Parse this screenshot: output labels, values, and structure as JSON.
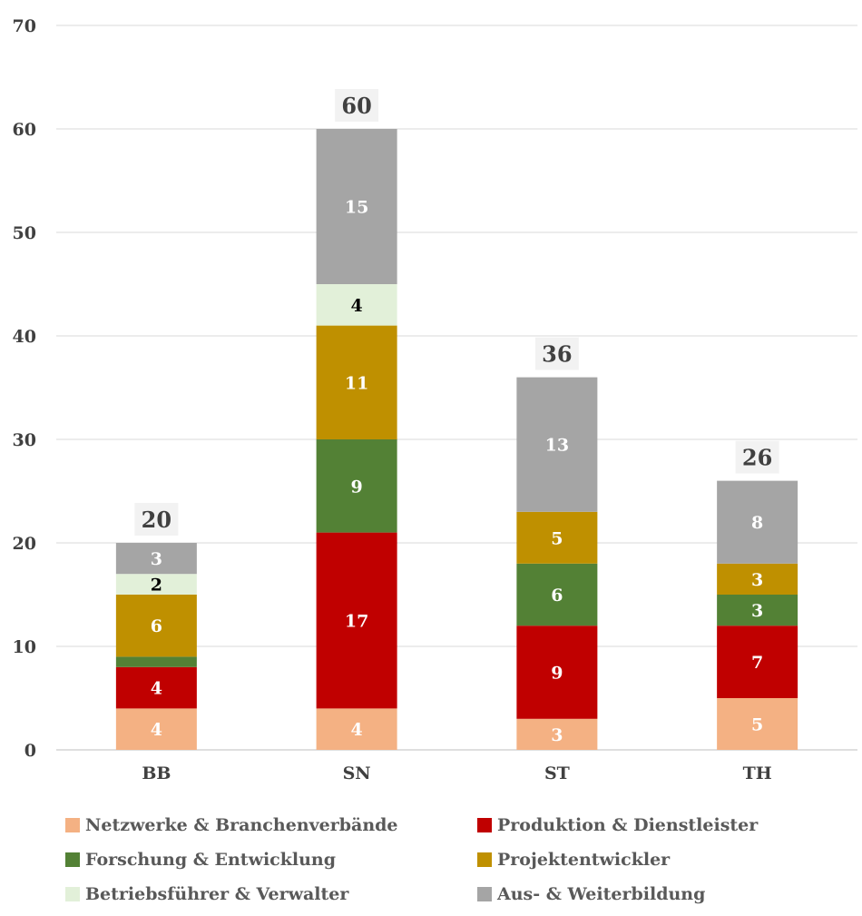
{
  "chart_data": {
    "type": "bar",
    "stacked": true,
    "categories": [
      "BB",
      "SN",
      "ST",
      "TH"
    ],
    "ylim": [
      0,
      70
    ],
    "yticks": [
      0,
      10,
      20,
      30,
      40,
      50,
      60,
      70
    ],
    "grid": true,
    "legend_position": "bottom",
    "series": [
      {
        "name": "Netzwerke & Branchenverbände",
        "color": "#f4b183",
        "label_color": "#ffffff",
        "values": [
          4,
          4,
          3,
          5
        ]
      },
      {
        "name": "Produktion & Dienstleister",
        "color": "#c00000",
        "label_color": "#ffffff",
        "values": [
          4,
          17,
          9,
          7
        ]
      },
      {
        "name": "Forschung & Entwicklung",
        "color": "#538135",
        "label_color": "#ffffff",
        "values": [
          1,
          9,
          6,
          3
        ],
        "labels_shown": [
          false,
          true,
          true,
          true
        ]
      },
      {
        "name": "Projektentwickler",
        "color": "#bf9000",
        "label_color": "#ffffff",
        "values": [
          6,
          11,
          5,
          3
        ]
      },
      {
        "name": "Betriebsführer & Verwalter",
        "color": "#e2f0d9",
        "label_color": "#000000",
        "values": [
          2,
          4,
          0,
          0
        ],
        "labels_shown": [
          true,
          true,
          false,
          false
        ]
      },
      {
        "name": "Aus- & Weiterbildung",
        "color": "#a5a5a5",
        "label_color": "#ffffff",
        "values": [
          3,
          15,
          13,
          8
        ]
      }
    ],
    "totals": [
      20,
      60,
      36,
      26
    ]
  }
}
